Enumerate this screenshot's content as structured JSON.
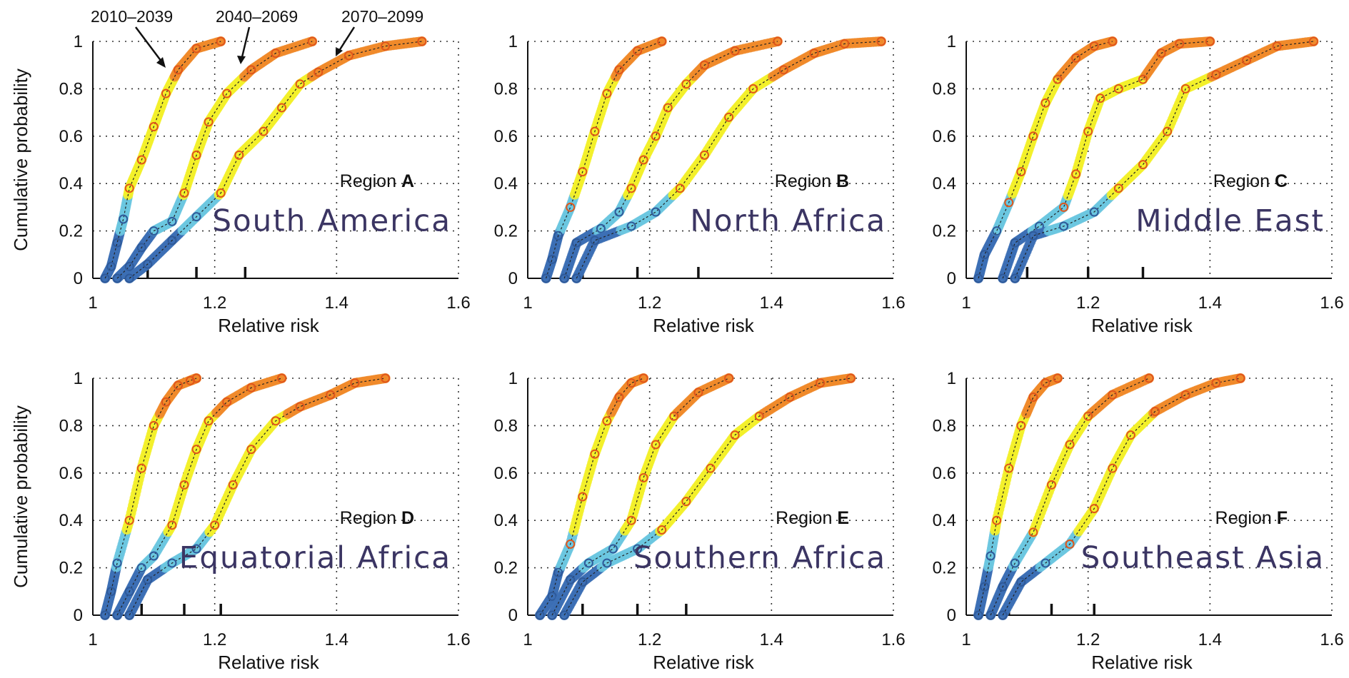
{
  "figure": {
    "period_annotations": [
      "2010–2039",
      "2040–2069",
      "2070–2099"
    ]
  },
  "chart_data": [
    {
      "type": "line",
      "region_label": "Region",
      "region_letter": "A",
      "place": "South America",
      "xlabel": "Relative risk",
      "ylabel": "Cumulative probability",
      "xlim": [
        1,
        1.6
      ],
      "ylim": [
        0,
        1
      ],
      "xticks": [
        "1",
        "1.2",
        "1.4",
        "1.6"
      ],
      "yticks": [
        "0",
        "0.2",
        "0.4",
        "0.6",
        "0.8",
        "1"
      ],
      "grid": true,
      "color_scale": [
        "#3c6fb5",
        "#6cc7e0",
        "#f3ef2a",
        "#f08a2a"
      ],
      "median_markers": [
        1.09,
        1.17,
        1.25
      ],
      "series": [
        {
          "x": [
            1.02,
            1.03,
            1.04,
            1.05,
            1.06,
            1.08,
            1.1,
            1.12,
            1.14,
            1.17,
            1.21
          ],
          "y": [
            0,
            0.05,
            0.15,
            0.25,
            0.38,
            0.5,
            0.64,
            0.78,
            0.88,
            0.97,
            1
          ]
        },
        {
          "x": [
            1.04,
            1.06,
            1.08,
            1.1,
            1.13,
            1.15,
            1.17,
            1.19,
            1.22,
            1.26,
            1.3,
            1.36
          ],
          "y": [
            0,
            0.05,
            0.13,
            0.2,
            0.24,
            0.36,
            0.52,
            0.66,
            0.78,
            0.88,
            0.95,
            1
          ]
        },
        {
          "x": [
            1.06,
            1.09,
            1.13,
            1.17,
            1.21,
            1.24,
            1.28,
            1.31,
            1.34,
            1.37,
            1.42,
            1.48,
            1.54
          ],
          "y": [
            0,
            0.06,
            0.16,
            0.26,
            0.36,
            0.52,
            0.62,
            0.72,
            0.82,
            0.87,
            0.94,
            0.98,
            1
          ]
        }
      ]
    },
    {
      "type": "line",
      "region_label": "Region",
      "region_letter": "B",
      "place": "North Africa",
      "xlabel": "Relative risk",
      "ylabel": "",
      "xlim": [
        1,
        1.6
      ],
      "ylim": [
        0,
        1
      ],
      "xticks": [
        "1",
        "1.2",
        "1.4",
        "1.6"
      ],
      "yticks": [
        "0",
        "0.2",
        "0.4",
        "0.6",
        "0.8",
        "1"
      ],
      "grid": true,
      "color_scale": [
        "#3c6fb5",
        "#6cc7e0",
        "#f3ef2a",
        "#f08a2a"
      ],
      "median_markers": [
        1.09,
        1.18,
        1.28
      ],
      "series": [
        {
          "x": [
            1.03,
            1.04,
            1.05,
            1.07,
            1.09,
            1.11,
            1.13,
            1.15,
            1.18,
            1.22
          ],
          "y": [
            0,
            0.08,
            0.18,
            0.3,
            0.45,
            0.62,
            0.78,
            0.88,
            0.96,
            1
          ]
        },
        {
          "x": [
            1.06,
            1.08,
            1.12,
            1.15,
            1.17,
            1.19,
            1.21,
            1.23,
            1.26,
            1.29,
            1.34,
            1.41
          ],
          "y": [
            0,
            0.15,
            0.21,
            0.28,
            0.38,
            0.5,
            0.6,
            0.72,
            0.82,
            0.9,
            0.96,
            1
          ]
        },
        {
          "x": [
            1.08,
            1.11,
            1.17,
            1.21,
            1.25,
            1.29,
            1.33,
            1.37,
            1.42,
            1.47,
            1.52,
            1.58
          ],
          "y": [
            0,
            0.16,
            0.22,
            0.28,
            0.38,
            0.52,
            0.68,
            0.8,
            0.88,
            0.95,
            0.99,
            1
          ]
        }
      ]
    },
    {
      "type": "line",
      "region_label": "Region",
      "region_letter": "C",
      "place": "Middle East",
      "xlabel": "Relative risk",
      "ylabel": "",
      "xlim": [
        1,
        1.6
      ],
      "ylim": [
        0,
        1
      ],
      "xticks": [
        "1",
        "1.2",
        "1.4",
        "1.6"
      ],
      "yticks": [
        "0",
        "0.2",
        "0.4",
        "0.6",
        "0.8",
        "1"
      ],
      "grid": true,
      "color_scale": [
        "#3c6fb5",
        "#6cc7e0",
        "#f3ef2a",
        "#f08a2a"
      ],
      "median_markers": [
        1.1,
        1.2,
        1.29
      ],
      "series": [
        {
          "x": [
            1.02,
            1.03,
            1.05,
            1.07,
            1.09,
            1.11,
            1.13,
            1.15,
            1.18,
            1.21,
            1.24
          ],
          "y": [
            0,
            0.1,
            0.2,
            0.32,
            0.45,
            0.6,
            0.74,
            0.84,
            0.93,
            0.98,
            1
          ]
        },
        {
          "x": [
            1.06,
            1.08,
            1.12,
            1.16,
            1.18,
            1.2,
            1.22,
            1.25,
            1.29,
            1.32,
            1.35,
            1.4
          ],
          "y": [
            0,
            0.15,
            0.22,
            0.3,
            0.44,
            0.62,
            0.76,
            0.8,
            0.84,
            0.95,
            0.99,
            1
          ]
        },
        {
          "x": [
            1.08,
            1.11,
            1.16,
            1.21,
            1.25,
            1.29,
            1.33,
            1.36,
            1.41,
            1.46,
            1.51,
            1.57
          ],
          "y": [
            0,
            0.18,
            0.22,
            0.28,
            0.38,
            0.48,
            0.62,
            0.8,
            0.86,
            0.92,
            0.98,
            1
          ]
        }
      ]
    },
    {
      "type": "line",
      "region_label": "Region",
      "region_letter": "D",
      "place": "Equatorial Africa",
      "xlabel": "Relative risk",
      "ylabel": "Cumulative probability",
      "xlim": [
        1,
        1.6
      ],
      "ylim": [
        0,
        1
      ],
      "xticks": [
        "1",
        "1.2",
        "1.4",
        "1.6"
      ],
      "yticks": [
        "0",
        "0.2",
        "0.4",
        "0.6",
        "0.8",
        "1"
      ],
      "grid": true,
      "color_scale": [
        "#3c6fb5",
        "#6cc7e0",
        "#f3ef2a",
        "#f08a2a"
      ],
      "median_markers": [
        1.08,
        1.15,
        1.21
      ],
      "series": [
        {
          "x": [
            1.02,
            1.03,
            1.04,
            1.06,
            1.08,
            1.1,
            1.12,
            1.14,
            1.16,
            1.17
          ],
          "y": [
            0,
            0.1,
            0.22,
            0.4,
            0.62,
            0.8,
            0.9,
            0.97,
            0.99,
            1
          ]
        },
        {
          "x": [
            1.04,
            1.06,
            1.08,
            1.1,
            1.13,
            1.15,
            1.17,
            1.19,
            1.22,
            1.26,
            1.31
          ],
          "y": [
            0,
            0.1,
            0.2,
            0.25,
            0.38,
            0.55,
            0.7,
            0.82,
            0.9,
            0.96,
            1
          ]
        },
        {
          "x": [
            1.06,
            1.09,
            1.13,
            1.17,
            1.2,
            1.23,
            1.26,
            1.3,
            1.34,
            1.39,
            1.43,
            1.48
          ],
          "y": [
            0,
            0.15,
            0.22,
            0.28,
            0.38,
            0.55,
            0.7,
            0.82,
            0.88,
            0.93,
            0.98,
            1
          ]
        }
      ]
    },
    {
      "type": "line",
      "region_label": "Region",
      "region_letter": "E",
      "place": "Southern Africa",
      "xlabel": "Relative risk",
      "ylabel": "",
      "xlim": [
        1,
        1.6
      ],
      "ylim": [
        0,
        1
      ],
      "xticks": [
        "1",
        "1.2",
        "1.4",
        "1.6"
      ],
      "yticks": [
        "0",
        "0.2",
        "0.4",
        "0.6",
        "0.8",
        "1"
      ],
      "grid": true,
      "color_scale": [
        "#3c6fb5",
        "#6cc7e0",
        "#f3ef2a",
        "#f08a2a"
      ],
      "median_markers": [
        1.09,
        1.18,
        1.26
      ],
      "series": [
        {
          "x": [
            1.02,
            1.04,
            1.05,
            1.07,
            1.09,
            1.11,
            1.13,
            1.15,
            1.17,
            1.19
          ],
          "y": [
            0,
            0.08,
            0.18,
            0.3,
            0.5,
            0.68,
            0.82,
            0.92,
            0.98,
            1
          ]
        },
        {
          "x": [
            1.04,
            1.07,
            1.1,
            1.14,
            1.17,
            1.19,
            1.21,
            1.24,
            1.28,
            1.33
          ],
          "y": [
            0,
            0.15,
            0.22,
            0.28,
            0.4,
            0.58,
            0.72,
            0.84,
            0.94,
            1
          ]
        },
        {
          "x": [
            1.06,
            1.09,
            1.13,
            1.18,
            1.22,
            1.26,
            1.3,
            1.34,
            1.38,
            1.43,
            1.48,
            1.53
          ],
          "y": [
            0,
            0.14,
            0.22,
            0.28,
            0.36,
            0.48,
            0.62,
            0.76,
            0.84,
            0.92,
            0.98,
            1
          ]
        }
      ]
    },
    {
      "type": "line",
      "region_label": "Region",
      "region_letter": "F",
      "place": "Southeast Asia",
      "xlabel": "Relative risk",
      "ylabel": "",
      "xlim": [
        1,
        1.6
      ],
      "ylim": [
        0,
        1
      ],
      "xticks": [
        "1",
        "1.2",
        "1.4",
        "1.6"
      ],
      "yticks": [
        "0",
        "0.2",
        "0.4",
        "0.6",
        "0.8",
        "1"
      ],
      "grid": true,
      "color_scale": [
        "#3c6fb5",
        "#6cc7e0",
        "#f3ef2a",
        "#f08a2a"
      ],
      "median_markers": [
        1.07,
        1.14,
        1.21
      ],
      "series": [
        {
          "x": [
            1.02,
            1.03,
            1.04,
            1.05,
            1.07,
            1.09,
            1.11,
            1.13,
            1.15
          ],
          "y": [
            0,
            0.12,
            0.25,
            0.4,
            0.62,
            0.8,
            0.92,
            0.98,
            1
          ]
        },
        {
          "x": [
            1.04,
            1.06,
            1.08,
            1.11,
            1.14,
            1.17,
            1.2,
            1.24,
            1.3
          ],
          "y": [
            0,
            0.12,
            0.22,
            0.35,
            0.55,
            0.72,
            0.84,
            0.93,
            1
          ]
        },
        {
          "x": [
            1.06,
            1.09,
            1.13,
            1.17,
            1.21,
            1.24,
            1.27,
            1.31,
            1.36,
            1.41,
            1.45
          ],
          "y": [
            0,
            0.14,
            0.22,
            0.3,
            0.45,
            0.62,
            0.76,
            0.86,
            0.93,
            0.98,
            1
          ]
        }
      ]
    }
  ]
}
